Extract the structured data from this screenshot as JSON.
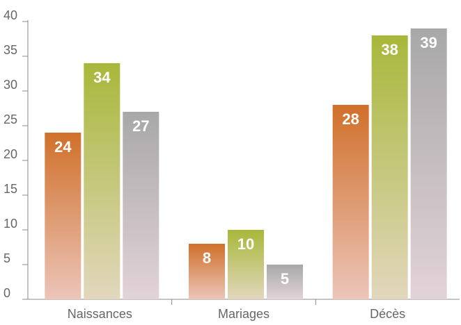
{
  "chart_data": {
    "type": "bar",
    "categories": [
      "Naissances",
      "Mariages",
      "Décès"
    ],
    "series": [
      {
        "color": "#d0702a",
        "values": [
          24,
          8,
          28
        ]
      },
      {
        "color": "#a8b83a",
        "values": [
          34,
          10,
          38
        ]
      },
      {
        "color": "#a8a8a8",
        "values": [
          27,
          5,
          39
        ]
      }
    ],
    "ylim": [
      0,
      40
    ],
    "yticks": [
      0,
      5,
      10,
      15,
      20,
      25,
      30,
      35,
      40
    ],
    "grid": false
  }
}
